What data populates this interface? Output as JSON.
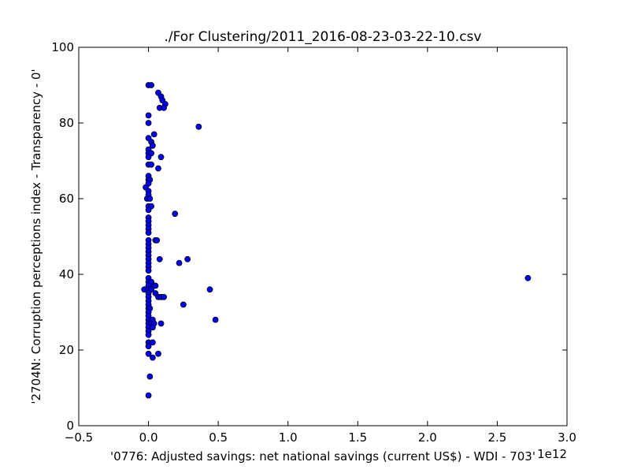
{
  "chart_data": {
    "type": "scatter",
    "title": "./For Clustering/2011_2016-08-23-03-22-10.csv",
    "xlabel": "'0776: Adjusted savings: net national savings  (current US$) - WDI - 703'",
    "ylabel": "'2704N: Corruption perceptions index - Transparency - 0'",
    "x_offset_label": "1e12",
    "xlim": [
      -0.5,
      3.0
    ],
    "ylim": [
      0,
      100
    ],
    "x_ticks": [
      -0.5,
      0.0,
      0.5,
      1.0,
      1.5,
      2.0,
      2.5,
      3.0
    ],
    "x_tick_labels": [
      "−0.5",
      "0.0",
      "0.5",
      "1.0",
      "1.5",
      "2.0",
      "2.5",
      "3.0"
    ],
    "y_ticks": [
      0,
      20,
      40,
      60,
      80,
      100
    ],
    "y_tick_labels": [
      "0",
      "20",
      "40",
      "60",
      "80",
      "100"
    ],
    "grid": false,
    "marker_color": "#0000ff",
    "marker_edge_color": "#000000",
    "points": [
      [
        0.0,
        90
      ],
      [
        0.02,
        90
      ],
      [
        0.07,
        88
      ],
      [
        0.09,
        87
      ],
      [
        0.1,
        86
      ],
      [
        0.12,
        85
      ],
      [
        0.08,
        84
      ],
      [
        0.11,
        84
      ],
      [
        0.36,
        79
      ],
      [
        0.0,
        82
      ],
      [
        0.0,
        80
      ],
      [
        0.04,
        77
      ],
      [
        0.0,
        76
      ],
      [
        0.02,
        75
      ],
      [
        0.03,
        74
      ],
      [
        0.0,
        73
      ],
      [
        0.0,
        72
      ],
      [
        0.02,
        72
      ],
      [
        0.0,
        71
      ],
      [
        0.09,
        71
      ],
      [
        0.0,
        69
      ],
      [
        0.02,
        69
      ],
      [
        0.07,
        68
      ],
      [
        0.0,
        66
      ],
      [
        0.0,
        65
      ],
      [
        0.01,
        65
      ],
      [
        0.0,
        64
      ],
      [
        -0.02,
        63
      ],
      [
        0.0,
        62
      ],
      [
        0.0,
        61
      ],
      [
        -0.01,
        60
      ],
      [
        0.01,
        60
      ],
      [
        0.0,
        58
      ],
      [
        0.02,
        58
      ],
      [
        0.0,
        57
      ],
      [
        0.19,
        56
      ],
      [
        0.0,
        55
      ],
      [
        0.0,
        54
      ],
      [
        0.0,
        53
      ],
      [
        0.0,
        52
      ],
      [
        0.0,
        51
      ],
      [
        0.0,
        49
      ],
      [
        0.05,
        49
      ],
      [
        0.06,
        49
      ],
      [
        0.0,
        48
      ],
      [
        0.0,
        47
      ],
      [
        0.0,
        46
      ],
      [
        0.0,
        45
      ],
      [
        0.0,
        44
      ],
      [
        0.08,
        44
      ],
      [
        0.28,
        44
      ],
      [
        0.0,
        43
      ],
      [
        0.22,
        43
      ],
      [
        0.0,
        42
      ],
      [
        0.0,
        41
      ],
      [
        0.0,
        39
      ],
      [
        0.0,
        38
      ],
      [
        0.02,
        38
      ],
      [
        0.0,
        37
      ],
      [
        0.04,
        37
      ],
      [
        0.05,
        37
      ],
      [
        -0.03,
        36
      ],
      [
        0.0,
        36
      ],
      [
        0.02,
        36
      ],
      [
        0.44,
        36
      ],
      [
        0.0,
        35
      ],
      [
        0.05,
        35
      ],
      [
        0.0,
        34
      ],
      [
        0.07,
        34
      ],
      [
        0.09,
        34
      ],
      [
        0.11,
        34
      ],
      [
        0.0,
        33
      ],
      [
        0.0,
        32
      ],
      [
        0.25,
        32
      ],
      [
        0.0,
        31
      ],
      [
        0.01,
        31
      ],
      [
        0.0,
        30
      ],
      [
        0.0,
        29
      ],
      [
        0.0,
        28
      ],
      [
        0.03,
        28
      ],
      [
        0.48,
        28
      ],
      [
        0.0,
        27
      ],
      [
        0.02,
        27
      ],
      [
        0.04,
        27
      ],
      [
        0.09,
        27
      ],
      [
        0.0,
        26
      ],
      [
        0.03,
        26
      ],
      [
        0.0,
        25
      ],
      [
        0.0,
        24
      ],
      [
        0.0,
        22
      ],
      [
        0.03,
        22
      ],
      [
        0.0,
        21
      ],
      [
        0.0,
        19
      ],
      [
        0.07,
        19
      ],
      [
        0.03,
        18
      ],
      [
        0.01,
        13
      ],
      [
        0.0,
        8
      ],
      [
        2.72,
        39
      ]
    ]
  }
}
